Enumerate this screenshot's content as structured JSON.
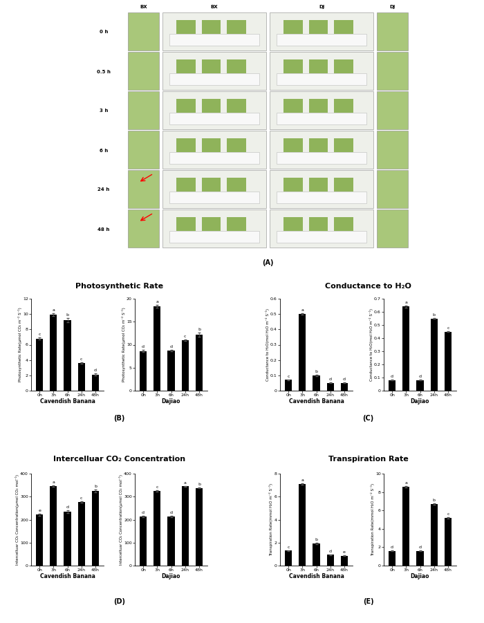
{
  "photo_panel": {
    "label": "(A)",
    "column_labels": [
      "BX",
      "BX",
      "DJ",
      "DJ"
    ],
    "row_labels": [
      "0 h",
      "0.5 h",
      "3 h",
      "6 h",
      "24 h",
      "48 h"
    ]
  },
  "panels": [
    {
      "label": "(B)",
      "title": "Photosynthetic Rate"
    },
    {
      "label": "(C)",
      "title": "Conductance to H₂O"
    },
    {
      "label": "(D)",
      "title": "Intercelluar CO₂ Concentration"
    },
    {
      "label": "(E)",
      "title": "Transpiration Rate"
    }
  ],
  "chart_data": [
    {
      "type": "bar",
      "xlabel": "Cavendish Banana",
      "ylabel": "Photosynthetic Rate(μmol CO₂ m⁻² S⁻¹)",
      "categories": [
        "0h",
        "3h",
        "6h",
        "24h",
        "48h"
      ],
      "values": [
        6.8,
        9.9,
        9.2,
        3.6,
        2.1
      ],
      "errors": [
        0.15,
        0.2,
        0.25,
        0.12,
        0.15
      ],
      "letters": [
        "c",
        "a",
        "b",
        "c",
        "d"
      ],
      "color": "#000000",
      "ylim": [
        0,
        12
      ],
      "yticks": [
        0,
        2,
        4,
        6,
        8,
        10,
        12
      ]
    },
    {
      "type": "bar",
      "xlabel": "Dajiao",
      "ylabel": "Photosynthetic Rate(μmol CO₂ m⁻² S⁻¹)",
      "categories": [
        "0h",
        "3h",
        "6h",
        "24h",
        "48h"
      ],
      "values": [
        8.6,
        18.4,
        8.7,
        11.0,
        12.2
      ],
      "errors": [
        0.2,
        0.3,
        0.2,
        0.2,
        0.5
      ],
      "letters": [
        "d",
        "a",
        "d",
        "c",
        "b"
      ],
      "color": "#000000",
      "ylim": [
        0,
        20
      ],
      "yticks": [
        0,
        5,
        10,
        15,
        20
      ]
    },
    {
      "type": "bar",
      "xlabel": "Cavendish Banana",
      "ylabel": "Conductance to H₂O(mol H₂O m⁻² S⁻¹)",
      "categories": [
        "0h",
        "3h",
        "6h",
        "24h",
        "48h"
      ],
      "values": [
        0.07,
        0.5,
        0.1,
        0.05,
        0.05
      ],
      "errors": [
        0.003,
        0.006,
        0.004,
        0.002,
        0.002
      ],
      "letters": [
        "c",
        "a",
        "b",
        "d",
        "d"
      ],
      "color": "#000000",
      "ylim": [
        0,
        0.6
      ],
      "yticks": [
        0,
        0.1,
        0.2,
        0.3,
        0.4,
        0.5,
        0.6
      ]
    },
    {
      "type": "bar",
      "xlabel": "Dajiao",
      "ylabel": "Conductance to H₂O(mol H₂O m⁻² S⁻¹)",
      "categories": [
        "0h",
        "3h",
        "6h",
        "24h",
        "48h"
      ],
      "values": [
        0.08,
        0.64,
        0.08,
        0.55,
        0.45
      ],
      "errors": [
        0.003,
        0.008,
        0.003,
        0.004,
        0.004
      ],
      "letters": [
        "d",
        "a",
        "d",
        "b",
        "c"
      ],
      "color": "#000000",
      "ylim": [
        0,
        0.7
      ],
      "yticks": [
        0,
        0.1,
        0.2,
        0.3,
        0.4,
        0.5,
        0.6,
        0.7
      ]
    },
    {
      "type": "bar",
      "xlabel": "Cavendish Banana",
      "ylabel": "Intercelluar CO₂ Concentration(μmol CO₂ mol⁻¹)",
      "categories": [
        "0h",
        "3h",
        "6h",
        "24h",
        "48h"
      ],
      "values": [
        222,
        345,
        235,
        278,
        326
      ],
      "errors": [
        4,
        3,
        5,
        3,
        6
      ],
      "letters": [
        "e",
        "a",
        "d",
        "c",
        "b"
      ],
      "color": "#000000",
      "ylim": [
        0,
        400
      ],
      "yticks": [
        0,
        100,
        200,
        300,
        400
      ]
    },
    {
      "type": "bar",
      "xlabel": "Dajiao",
      "ylabel": "Intercelluar CO₂ Concentration(μmol CO₂ mol⁻¹)",
      "categories": [
        "0h",
        "3h",
        "6h",
        "24h",
        "48h"
      ],
      "values": [
        213,
        325,
        213,
        345,
        338
      ],
      "errors": [
        3,
        2,
        3,
        2,
        2
      ],
      "letters": [
        "d",
        "c",
        "d",
        "a",
        "b"
      ],
      "color": "#000000",
      "ylim": [
        0,
        400
      ],
      "yticks": [
        0,
        100,
        200,
        300,
        400
      ]
    },
    {
      "type": "bar",
      "xlabel": "Cavendish Banana",
      "ylabel": "Transpiration Rate(mmol H₂O m⁻² S⁻¹)",
      "categories": [
        "0h",
        "3h",
        "6h",
        "24h",
        "48h"
      ],
      "values": [
        1.3,
        7.1,
        1.9,
        0.95,
        0.85
      ],
      "errors": [
        0.05,
        0.08,
        0.06,
        0.04,
        0.03
      ],
      "letters": [
        "c",
        "a",
        "b",
        "d",
        "e"
      ],
      "color": "#000000",
      "ylim": [
        0,
        8
      ],
      "yticks": [
        0,
        2,
        4,
        6,
        8
      ]
    },
    {
      "type": "bar",
      "xlabel": "Dajiao",
      "ylabel": "Transpiration Rate(mmol H₂O m⁻² S⁻¹)",
      "categories": [
        "0h",
        "3h",
        "6h",
        "24h",
        "48h"
      ],
      "values": [
        1.6,
        8.6,
        1.6,
        6.7,
        5.2
      ],
      "errors": [
        0.05,
        0.08,
        0.05,
        0.07,
        0.06
      ],
      "letters": [
        "d",
        "a",
        "d",
        "b",
        "c"
      ],
      "color": "#000000",
      "ylim": [
        0,
        10
      ],
      "yticks": [
        0,
        2,
        4,
        6,
        8,
        10
      ]
    }
  ]
}
